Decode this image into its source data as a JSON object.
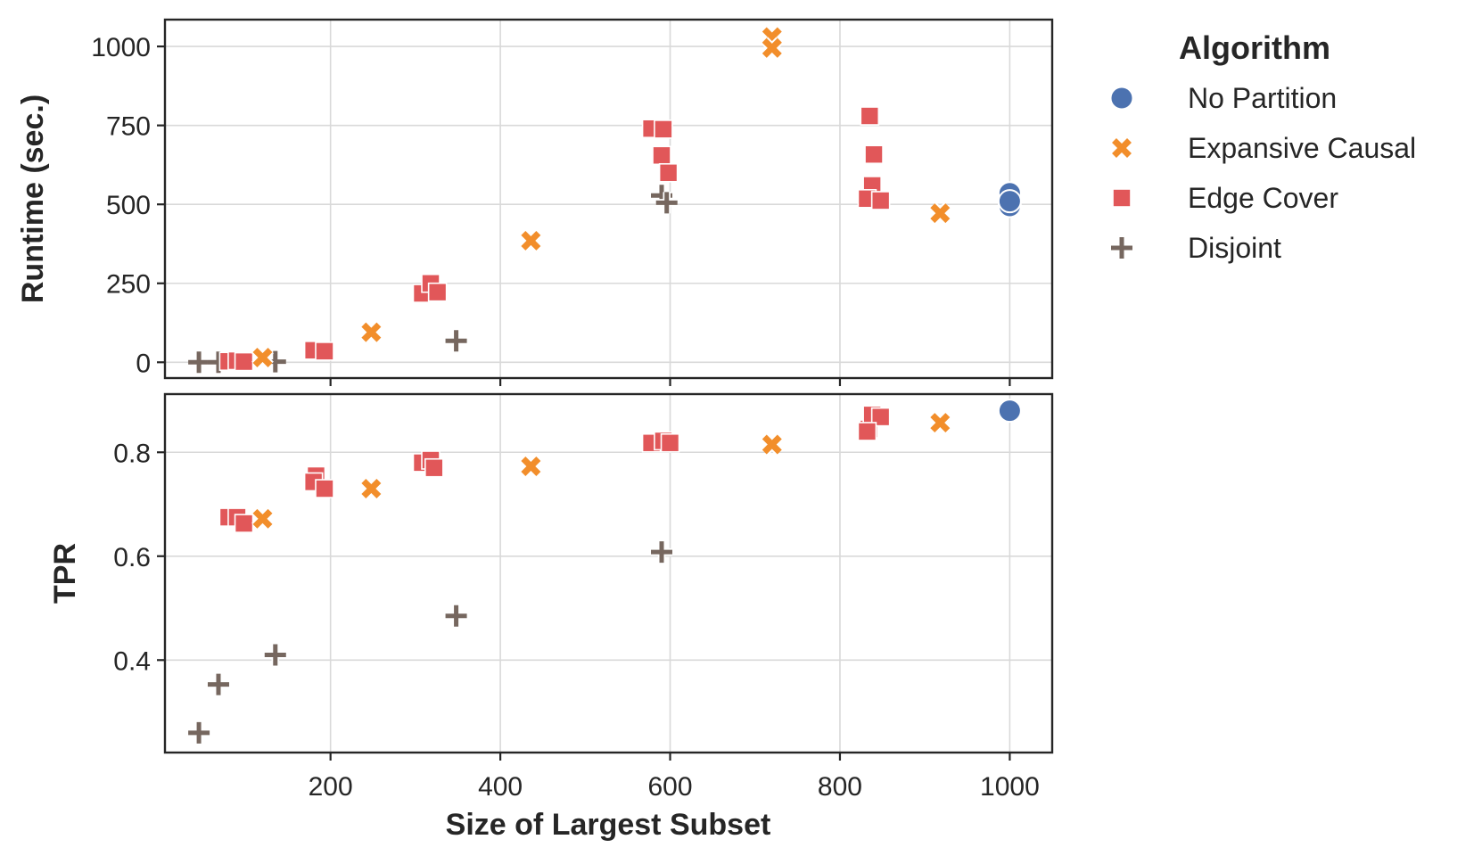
{
  "chart_data": [
    {
      "type": "scatter",
      "panel": "top",
      "xlabel": "Size of Largest Subset",
      "ylabel": "Runtime (sec.)",
      "xlim": [
        5,
        1050
      ],
      "ylim": [
        -50,
        1085
      ],
      "xticks": [
        200,
        400,
        600,
        800,
        1000
      ],
      "xtick_labels_visible": false,
      "yticks": [
        0,
        250,
        500,
        750,
        1000
      ],
      "ytick_labels": [
        "0",
        "250",
        "500",
        "750",
        "1000"
      ],
      "grid": true,
      "series": [
        {
          "name": "No Partition",
          "points": [
            [
              1000,
              535
            ],
            [
              1000,
              495
            ],
            [
              1000,
              510
            ]
          ]
        },
        {
          "name": "Expansive Causal",
          "points": [
            [
              120,
              15
            ],
            [
              248,
              95
            ],
            [
              436,
              385
            ],
            [
              720,
              1030
            ],
            [
              720,
              995
            ],
            [
              918,
              472
            ]
          ]
        },
        {
          "name": "Edge Cover",
          "points": [
            [
              80,
              3
            ],
            [
              90,
              5
            ],
            [
              98,
              2
            ],
            [
              180,
              38
            ],
            [
              193,
              35
            ],
            [
              308,
              218
            ],
            [
              318,
              250
            ],
            [
              326,
              222
            ],
            [
              578,
              740
            ],
            [
              592,
              738
            ],
            [
              590,
              655
            ],
            [
              598,
              600
            ],
            [
              835,
              780
            ],
            [
              840,
              658
            ],
            [
              838,
              560
            ],
            [
              832,
              518
            ],
            [
              848,
              512
            ]
          ]
        },
        {
          "name": "Disjoint",
          "points": [
            [
              45,
              0
            ],
            [
              68,
              0
            ],
            [
              135,
              2
            ],
            [
              348,
              68
            ],
            [
              590,
              528
            ],
            [
              596,
              505
            ]
          ]
        }
      ]
    },
    {
      "type": "scatter",
      "panel": "bottom",
      "xlabel": "Size of Largest Subset",
      "ylabel": "TPR",
      "xlim": [
        5,
        1050
      ],
      "ylim": [
        0.222,
        0.912
      ],
      "xticks": [
        200,
        400,
        600,
        800,
        1000
      ],
      "xtick_labels": [
        "200",
        "400",
        "600",
        "800",
        "1000"
      ],
      "yticks": [
        0.4,
        0.6,
        0.8
      ],
      "ytick_labels": [
        "0.4",
        "0.6",
        "0.8"
      ],
      "grid": true,
      "series": [
        {
          "name": "No Partition",
          "points": [
            [
              1000,
              0.88
            ]
          ]
        },
        {
          "name": "Expansive Causal",
          "points": [
            [
              120,
              0.672
            ],
            [
              248,
              0.73
            ],
            [
              436,
              0.773
            ],
            [
              720,
              0.815
            ],
            [
              918,
              0.857
            ]
          ]
        },
        {
          "name": "Edge Cover",
          "points": [
            [
              80,
              0.675
            ],
            [
              90,
              0.675
            ],
            [
              98,
              0.663
            ],
            [
              183,
              0.755
            ],
            [
              180,
              0.743
            ],
            [
              193,
              0.73
            ],
            [
              308,
              0.78
            ],
            [
              318,
              0.785
            ],
            [
              322,
              0.77
            ],
            [
              578,
              0.818
            ],
            [
              592,
              0.822
            ],
            [
              600,
              0.818
            ],
            [
              834,
              0.845
            ],
            [
              838,
              0.872
            ],
            [
              848,
              0.868
            ],
            [
              832,
              0.84
            ]
          ]
        },
        {
          "name": "Disjoint",
          "points": [
            [
              45,
              0.26
            ],
            [
              68,
              0.353
            ],
            [
              135,
              0.41
            ],
            [
              348,
              0.485
            ],
            [
              590,
              0.608
            ]
          ]
        }
      ]
    }
  ],
  "legend": {
    "title": "Algorithm",
    "placement": "outside-right",
    "items": [
      {
        "label": "No Partition",
        "marker": "circle",
        "color": "#4c72b0"
      },
      {
        "label": "Expansive Causal",
        "marker": "x",
        "color": "#f28e2b"
      },
      {
        "label": "Edge Cover",
        "marker": "square",
        "color": "#e15759"
      },
      {
        "label": "Disjoint",
        "marker": "plus",
        "color": "#76675f"
      }
    ]
  }
}
